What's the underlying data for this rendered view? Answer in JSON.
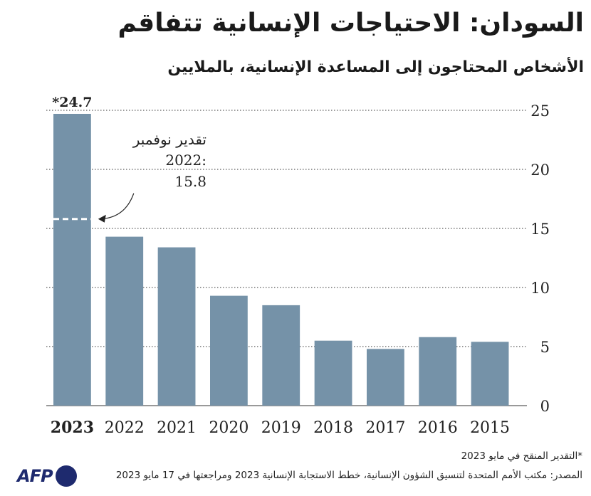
{
  "title": "السودان: الاحتياجات الإنسانية تتفاقم",
  "subtitle": "الأشخاص المحتاجون إلى المساعدة الإنسانية، بالملايين",
  "footnote": "*التقدير المنقح في مايو 2023",
  "source": "المصدر: مكتب الأمم المتحدة لتنسيق الشؤون الإنسانية، خطط الاستجابة الإنسانية 2023 ومراجعتها في 17 مايو 2023",
  "logo": {
    "text": "AFP",
    "color": "#1e2a6e"
  },
  "colors": {
    "bar": "#7592a8",
    "grid": "#333333",
    "text": "#222222"
  },
  "chart_data": {
    "type": "bar",
    "categories": [
      "2023",
      "2022",
      "2021",
      "2020",
      "2019",
      "2018",
      "2017",
      "2016",
      "2015"
    ],
    "values": [
      24.7,
      14.3,
      13.4,
      9.3,
      8.5,
      5.5,
      4.8,
      5.8,
      5.4
    ],
    "value_labels": {
      "2023": "*24.7"
    },
    "highlight_category": "2023",
    "ylim": [
      0,
      25
    ],
    "yticks": [
      0,
      5,
      10,
      15,
      20,
      25
    ],
    "grid": true,
    "grid_style": "dotted",
    "y_axis_side": "right",
    "annotation": {
      "category": "2023",
      "value": 15.8,
      "lines": [
        "تقدير نوفمبر",
        "2022:",
        "15.8"
      ]
    }
  }
}
